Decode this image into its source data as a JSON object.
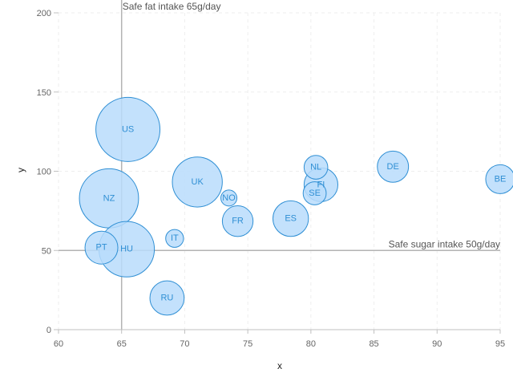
{
  "chart_data": {
    "type": "scatter",
    "subtype": "bubble",
    "xlabel": "x",
    "ylabel": "y",
    "xlim": [
      60,
      95
    ],
    "ylim": [
      0,
      200
    ],
    "x_ticks": [
      60,
      65,
      70,
      75,
      80,
      85,
      90,
      95
    ],
    "y_ticks": [
      0,
      50,
      100,
      150,
      200
    ],
    "grid": true,
    "colors": {
      "bubble_fill": "#b9dcfb",
      "bubble_stroke": "#2f8fd4",
      "plot_line": "#b3b3b3",
      "grid": "#eeeeee"
    },
    "plot_lines": [
      {
        "axis": "x",
        "value": 65,
        "label": "Safe fat intake 65g/day"
      },
      {
        "axis": "y",
        "value": 50,
        "label": "Safe sugar intake 50g/day"
      }
    ],
    "points": [
      {
        "label": "BE",
        "x": 95,
        "y": 95,
        "z": 13.8
      },
      {
        "label": "DE",
        "x": 86.5,
        "y": 102.9,
        "z": 14.7
      },
      {
        "label": "FI",
        "x": 80.8,
        "y": 91.5,
        "z": 15.8
      },
      {
        "label": "NL",
        "x": 80.4,
        "y": 102.5,
        "z": 12
      },
      {
        "label": "SE",
        "x": 80.3,
        "y": 86.1,
        "z": 11.8
      },
      {
        "label": "ES",
        "x": 78.4,
        "y": 70.1,
        "z": 16.6
      },
      {
        "label": "FR",
        "x": 74.2,
        "y": 68.5,
        "z": 14.5
      },
      {
        "label": "NO",
        "x": 73.5,
        "y": 83.1,
        "z": 10
      },
      {
        "label": "UK",
        "x": 71,
        "y": 93.2,
        "z": 24.7
      },
      {
        "label": "IT",
        "x": 69.2,
        "y": 57.6,
        "z": 10.4
      },
      {
        "label": "RU",
        "x": 68.6,
        "y": 20,
        "z": 16
      },
      {
        "label": "US",
        "x": 65.5,
        "y": 126.4,
        "z": 35.3
      },
      {
        "label": "HU",
        "x": 65.4,
        "y": 50.8,
        "z": 28.5
      },
      {
        "label": "PT",
        "x": 63.4,
        "y": 51.8,
        "z": 15.4
      },
      {
        "label": "NZ",
        "x": 64,
        "y": 82.9,
        "z": 31.3
      }
    ]
  }
}
